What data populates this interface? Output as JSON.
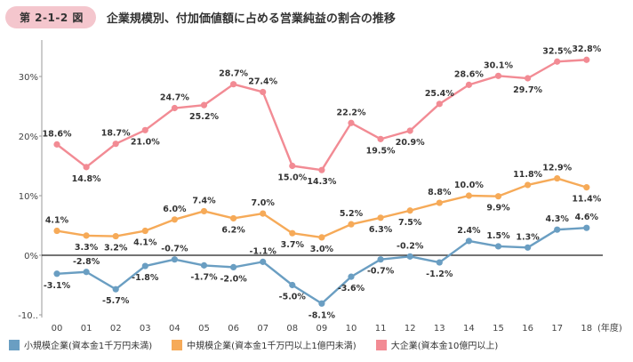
{
  "figure_label": "第 2-1-2 図",
  "title": "企業規模別、付加価値額に占める営業純益の割合の推移",
  "chart_data": {
    "type": "line",
    "categories": [
      "00",
      "01",
      "02",
      "03",
      "04",
      "05",
      "06",
      "07",
      "08",
      "09",
      "10",
      "11",
      "12",
      "13",
      "14",
      "15",
      "16",
      "17",
      "18"
    ],
    "x_unit": "(年度)",
    "y_ticks": [
      "30%",
      "20%",
      "10%",
      "0%",
      "-10.."
    ],
    "y_tick_values": [
      30,
      20,
      10,
      0,
      -10
    ],
    "ylim": [
      -10,
      35
    ],
    "grid": false,
    "series": [
      {
        "name": "小規模企業(資本金1千万円未満)",
        "color": "#6a9ec2",
        "values": [
          -3.1,
          -2.8,
          -5.7,
          -1.8,
          -0.7,
          -1.7,
          -2.0,
          -1.1,
          -5.0,
          -8.1,
          -3.6,
          -0.7,
          -0.2,
          -1.2,
          2.4,
          1.5,
          1.3,
          4.3,
          4.6
        ],
        "labels": [
          "-3.1%",
          "-2.8%",
          "-5.7%",
          "-1.8%",
          "-0.7%",
          "-1.7%",
          "-2.0%",
          "-1.1%",
          "-5.0%",
          "-8.1%",
          "-3.6%",
          "-0.7%",
          "-0.2%",
          "-1.2%",
          "2.4%",
          "1.5%",
          "1.3%",
          "4.3%",
          "4.6%"
        ]
      },
      {
        "name": "中規模企業(資本金1千万円以上1億円未満)",
        "color": "#f6aa58",
        "values": [
          4.1,
          3.3,
          3.2,
          4.1,
          6.0,
          7.4,
          6.2,
          7.0,
          3.7,
          3.0,
          5.2,
          6.3,
          7.5,
          8.8,
          10.0,
          9.9,
          11.8,
          12.9,
          11.4
        ],
        "labels": [
          "4.1%",
          "3.3%",
          "3.2%",
          "4.1%",
          "6.0%",
          "7.4%",
          "6.2%",
          "7.0%",
          "3.7%",
          "3.0%",
          "5.2%",
          "6.3%",
          "7.5%",
          "8.8%",
          "10.0%",
          "9.9%",
          "11.8%",
          "12.9%",
          "11.4%"
        ]
      },
      {
        "name": "大企業(資本金10億円以上)",
        "color": "#f28b94",
        "values": [
          18.6,
          14.8,
          18.7,
          21.0,
          24.7,
          25.2,
          28.7,
          27.4,
          15.0,
          14.3,
          22.2,
          19.5,
          20.9,
          25.4,
          28.6,
          30.1,
          29.7,
          32.5,
          32.8
        ],
        "labels": [
          "18.6%",
          "14.8%",
          "18.7%",
          "21.0%",
          "24.7%",
          "25.2%",
          "28.7%",
          "27.4%",
          "15.0%",
          "14.3%",
          "22.2%",
          "19.5%",
          "20.9%",
          "25.4%",
          "28.6%",
          "30.1%",
          "29.7%",
          "32.5%",
          "32.8%"
        ]
      }
    ]
  }
}
